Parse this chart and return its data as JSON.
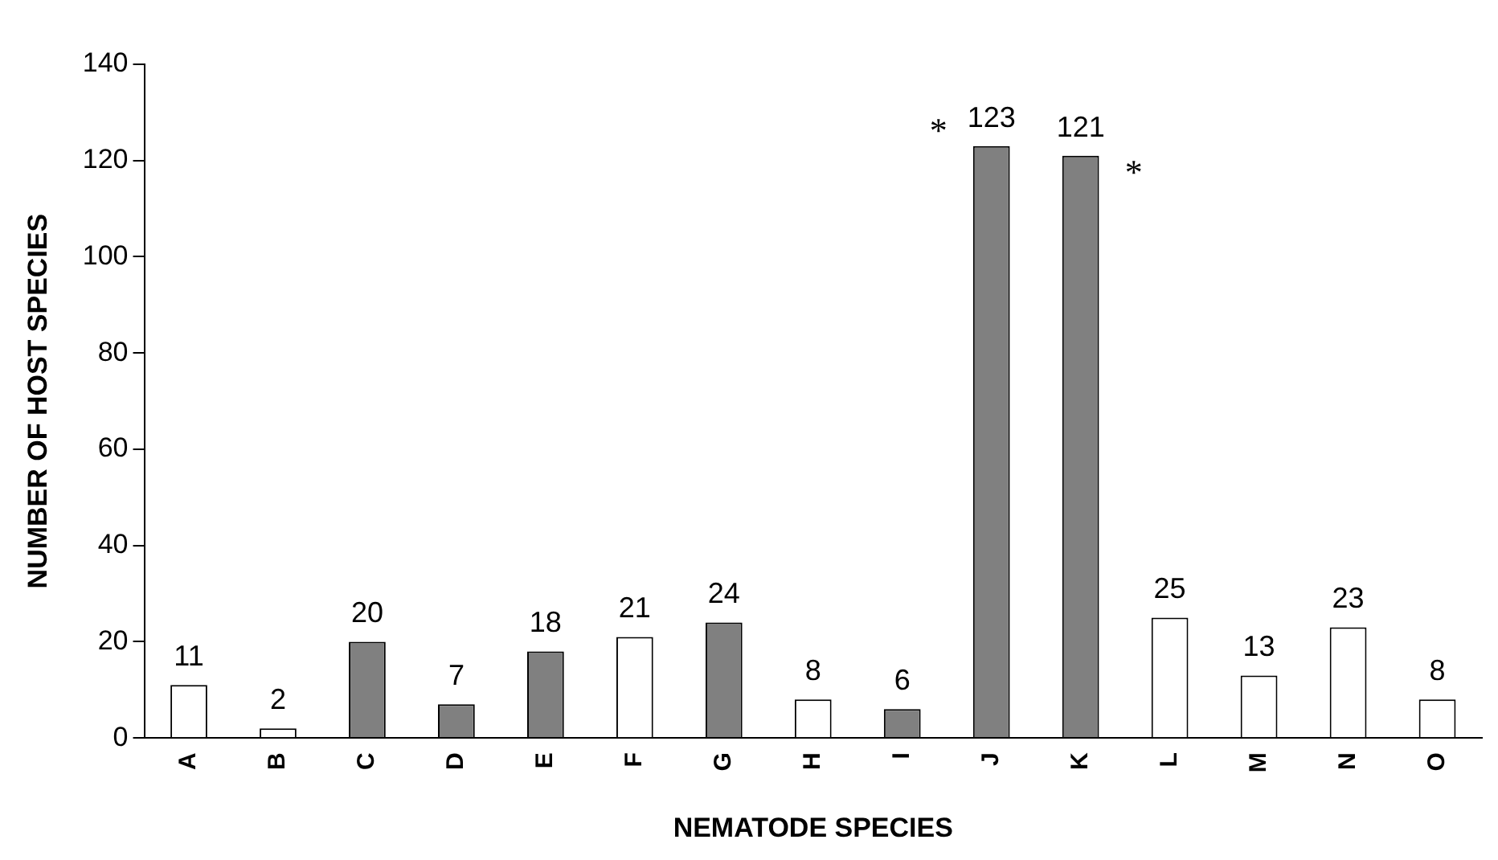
{
  "chart_data": {
    "type": "bar",
    "xlabel": "NEMATODE SPECIES",
    "ylabel": "NUMBER OF HOST SPECIES",
    "categories": [
      "A",
      "B",
      "C",
      "D",
      "E",
      "F",
      "G",
      "H",
      "I",
      "J",
      "K",
      "L",
      "M",
      "N",
      "O"
    ],
    "values": [
      11,
      2,
      20,
      7,
      18,
      21,
      24,
      8,
      6,
      123,
      121,
      25,
      13,
      23,
      8
    ],
    "colors": [
      "#ffffff",
      "#ffffff",
      "#808080",
      "#808080",
      "#808080",
      "#ffffff",
      "#808080",
      "#ffffff",
      "#808080",
      "#808080",
      "#808080",
      "#ffffff",
      "#ffffff",
      "#ffffff",
      "#ffffff"
    ],
    "ylim": [
      0,
      140
    ],
    "yticks": [
      0,
      20,
      40,
      60,
      80,
      100,
      120,
      140
    ],
    "grid": false,
    "legend": false,
    "data_labels": true,
    "annotations": [
      {
        "text": "*",
        "x": "J",
        "y": 123
      },
      {
        "text": "*",
        "x": "K",
        "y": 121
      }
    ]
  }
}
